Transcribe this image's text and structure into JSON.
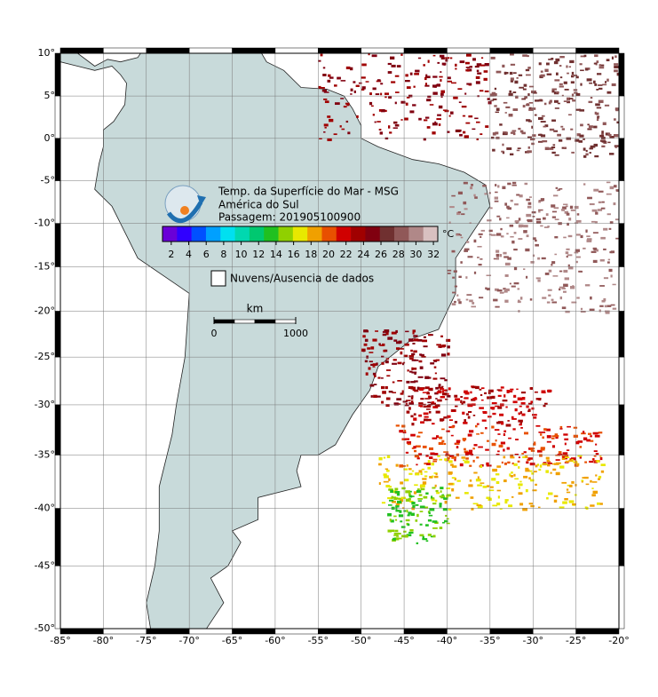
{
  "map": {
    "title": [
      "Temp. da Superfície do Mar - MSG",
      "América do Sul",
      "Passagem: 201905100900"
    ],
    "lon_lim": [
      -85,
      -20
    ],
    "lat_lim": [
      -50,
      10
    ],
    "lon_ticks": [
      {
        "value": -85,
        "label": "-85°"
      },
      {
        "value": -80,
        "label": "-80°"
      },
      {
        "value": -75,
        "label": "-75°"
      },
      {
        "value": -70,
        "label": "-70°"
      },
      {
        "value": -65,
        "label": "-65°"
      },
      {
        "value": -60,
        "label": "-60°"
      },
      {
        "value": -55,
        "label": "-55°"
      },
      {
        "value": -50,
        "label": "-50°"
      },
      {
        "value": -45,
        "label": "-45°"
      },
      {
        "value": -40,
        "label": "-40°"
      },
      {
        "value": -35,
        "label": "-35°"
      },
      {
        "value": -30,
        "label": "-30°"
      },
      {
        "value": -25,
        "label": "-25°"
      },
      {
        "value": -20,
        "label": "-20°"
      }
    ],
    "lat_ticks": [
      {
        "value": 10,
        "label": "10°"
      },
      {
        "value": 5,
        "label": "5°"
      },
      {
        "value": 0,
        "label": "0°"
      },
      {
        "value": -5,
        "label": "-5°"
      },
      {
        "value": -10,
        "label": "-10°"
      },
      {
        "value": -15,
        "label": "-15°"
      },
      {
        "value": -20,
        "label": "-20°"
      },
      {
        "value": -25,
        "label": "-25°"
      },
      {
        "value": -30,
        "label": "-30°"
      },
      {
        "value": -35,
        "label": "-35°"
      },
      {
        "value": -40,
        "label": "-40°"
      },
      {
        "value": -45,
        "label": "-45°"
      },
      {
        "value": -50,
        "label": "-50°"
      }
    ],
    "colorbar": {
      "unit": "°C",
      "lim": [
        1,
        32.5
      ],
      "ticks": [
        2,
        4,
        6,
        8,
        10,
        12,
        14,
        16,
        18,
        20,
        22,
        24,
        26,
        28,
        30,
        32
      ],
      "colors": [
        "#6a00d8",
        "#3000ff",
        "#0050ff",
        "#00a0ff",
        "#00e0f0",
        "#00d8b0",
        "#00c870",
        "#20c020",
        "#90d000",
        "#e8e800",
        "#f0a000",
        "#e85000",
        "#d00000",
        "#a00000",
        "#800010",
        "#703030",
        "#905858",
        "#b08888",
        "#d8c0c0"
      ]
    },
    "legend": "Nuvens/Ausencia de dados",
    "scale_bar": {
      "unit": "km",
      "ticks": [
        0,
        1000
      ]
    }
  }
}
